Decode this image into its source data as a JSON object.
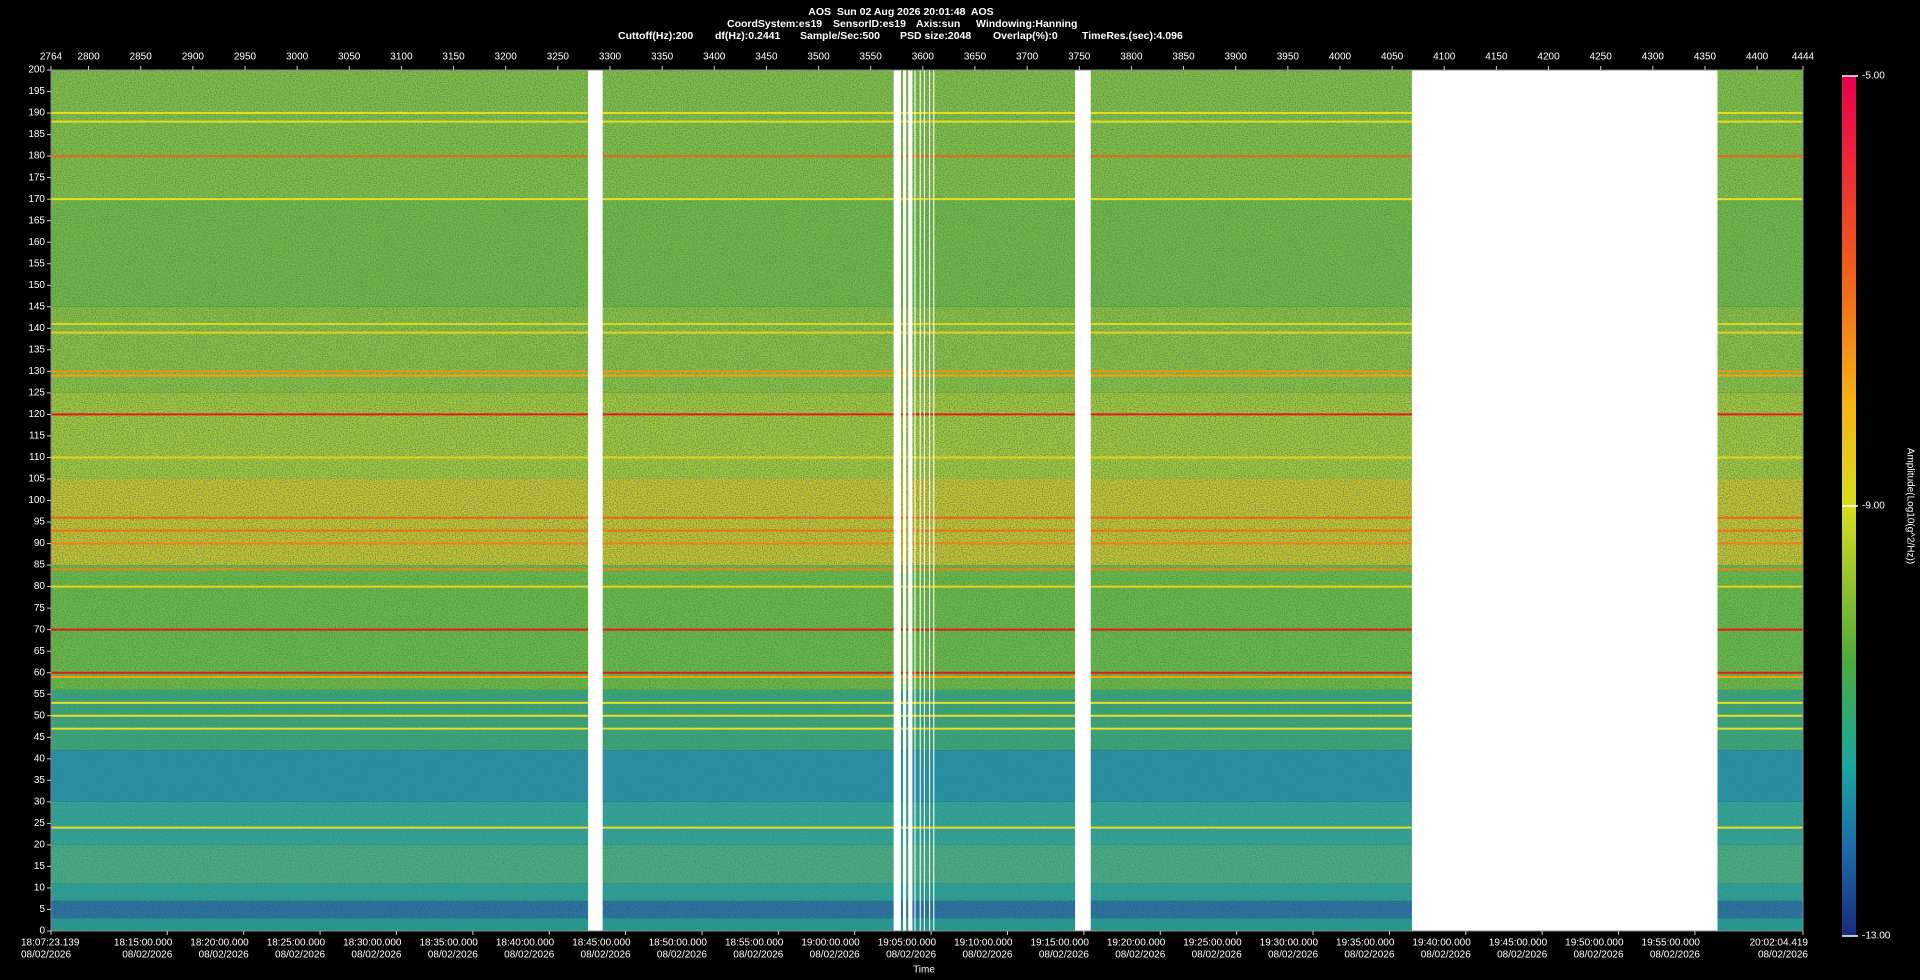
{
  "chart_data": {
    "type": "spectrogram",
    "title": "AOS  Sun 02 Aug 2026 20:01:48  AOS",
    "params_line1": [
      "CoordSystem:es19",
      "SensorID:es19",
      "Axis:sun",
      "Windowing:Hanning"
    ],
    "params_line2": [
      "Cuttoff(Hz):200",
      "df(Hz):0.2441",
      "Sample/Sec:500",
      "PSD size:2048",
      "Overlap(%):0",
      "TimeRes.(sec):4.096"
    ],
    "xlim": [
      2764,
      4444
    ],
    "xticks": [
      2764,
      2800,
      2850,
      2900,
      2950,
      3000,
      3050,
      3100,
      3150,
      3200,
      3250,
      3300,
      3350,
      3400,
      3450,
      3500,
      3550,
      3600,
      3650,
      3700,
      3750,
      3800,
      3850,
      3900,
      3950,
      4000,
      4050,
      4100,
      4150,
      4200,
      4250,
      4300,
      4350,
      4400,
      4444
    ],
    "ylim": [
      0,
      200
    ],
    "yticks": [
      0,
      5,
      10,
      15,
      20,
      25,
      30,
      35,
      40,
      45,
      50,
      55,
      60,
      65,
      70,
      75,
      80,
      85,
      90,
      95,
      100,
      105,
      110,
      115,
      120,
      125,
      130,
      135,
      140,
      145,
      150,
      155,
      160,
      165,
      170,
      175,
      180,
      185,
      190,
      195,
      200
    ],
    "xlabel": "Time",
    "time_ticks": [
      {
        "time": "18:07:23.139",
        "date": "08/02/2026"
      },
      {
        "time": "18:15:00.000",
        "date": "08/02/2026"
      },
      {
        "time": "18:20:00.000",
        "date": "08/02/2026"
      },
      {
        "time": "18:25:00.000",
        "date": "08/02/2026"
      },
      {
        "time": "18:30:00.000",
        "date": "08/02/2026"
      },
      {
        "time": "18:35:00.000",
        "date": "08/02/2026"
      },
      {
        "time": "18:40:00.000",
        "date": "08/02/2026"
      },
      {
        "time": "18:45:00.000",
        "date": "08/02/2026"
      },
      {
        "time": "18:50:00.000",
        "date": "08/02/2026"
      },
      {
        "time": "18:55:00.000",
        "date": "08/02/2026"
      },
      {
        "time": "19:00:00.000",
        "date": "08/02/2026"
      },
      {
        "time": "19:05:00.000",
        "date": "08/02/2026"
      },
      {
        "time": "19:10:00.000",
        "date": "08/02/2026"
      },
      {
        "time": "19:15:00.000",
        "date": "08/02/2026"
      },
      {
        "time": "19:20:00.000",
        "date": "08/02/2026"
      },
      {
        "time": "19:25:00.000",
        "date": "08/02/2026"
      },
      {
        "time": "19:30:00.000",
        "date": "08/02/2026"
      },
      {
        "time": "19:35:00.000",
        "date": "08/02/2026"
      },
      {
        "time": "19:40:00.000",
        "date": "08/02/2026"
      },
      {
        "time": "19:45:00.000",
        "date": "08/02/2026"
      },
      {
        "time": "19:50:00.000",
        "date": "08/02/2026"
      },
      {
        "time": "19:55:00.000",
        "date": "08/02/2026"
      },
      {
        "time": "20:02:04.419",
        "date": "08/02/2026"
      }
    ],
    "bands": [
      {
        "from": 0,
        "to": 3,
        "color": "#1f9a9c"
      },
      {
        "from": 3,
        "to": 7,
        "color": "#2366aa"
      },
      {
        "from": 7,
        "to": 11,
        "color": "#27a2a0"
      },
      {
        "from": 11,
        "to": 20,
        "color": "#48ae84"
      },
      {
        "from": 20,
        "to": 30,
        "color": "#2ea6a0"
      },
      {
        "from": 30,
        "to": 42,
        "color": "#2290b4"
      },
      {
        "from": 42,
        "to": 56,
        "color": "#3aa67c"
      },
      {
        "from": 56,
        "to": 85,
        "color": "#70bc3a"
      },
      {
        "from": 85,
        "to": 105,
        "color": "#d8c424"
      },
      {
        "from": 105,
        "to": 125,
        "color": "#b0ca30"
      },
      {
        "from": 125,
        "to": 145,
        "color": "#94c238"
      },
      {
        "from": 145,
        "to": 170,
        "color": "#78ba3a"
      },
      {
        "from": 170,
        "to": 200,
        "color": "#8ac03a"
      }
    ],
    "lines": [
      {
        "freq": 190,
        "color": "#e6dc20"
      },
      {
        "freq": 188,
        "color": "#e6dc20"
      },
      {
        "freq": 180,
        "color": "#f06018"
      },
      {
        "freq": 170,
        "color": "#e6e020"
      },
      {
        "freq": 141,
        "color": "#d8d820"
      },
      {
        "freq": 139,
        "color": "#e6d020"
      },
      {
        "freq": 130,
        "color": "#f59010"
      },
      {
        "freq": 129,
        "color": "#f5a010"
      },
      {
        "freq": 120,
        "color": "#e81818"
      },
      {
        "freq": 110,
        "color": "#e0d020"
      },
      {
        "freq": 96,
        "color": "#f06018"
      },
      {
        "freq": 93,
        "color": "#f07018"
      },
      {
        "freq": 90,
        "color": "#f08018"
      },
      {
        "freq": 84,
        "color": "#f08018"
      },
      {
        "freq": 80,
        "color": "#e6d020"
      },
      {
        "freq": 70,
        "color": "#e81818"
      },
      {
        "freq": 60,
        "color": "#e81818"
      },
      {
        "freq": 59,
        "color": "#f5a010"
      },
      {
        "freq": 53,
        "color": "#e6e020"
      },
      {
        "freq": 50,
        "color": "#e6e020"
      },
      {
        "freq": 47,
        "color": "#e6e020"
      },
      {
        "freq": 24,
        "color": "#e6e020"
      }
    ],
    "gaps": [
      [
        3279,
        3293
      ],
      [
        3572,
        3579
      ],
      [
        3581,
        3584
      ],
      [
        3586,
        3590
      ],
      [
        3592,
        3593
      ],
      [
        3597,
        3598
      ],
      [
        3601,
        3602
      ],
      [
        3606,
        3607
      ],
      [
        3610,
        3611
      ],
      [
        3746,
        3761
      ],
      [
        4069,
        4362
      ]
    ],
    "colorbar_label": "Amplitude(Log10(g^2/Hz))",
    "clim": [
      -13,
      -5
    ],
    "cticks": [
      {
        "value": -5,
        "label": "-5.00"
      },
      {
        "value": -9,
        "label": "-9.00"
      },
      {
        "value": -13,
        "label": "-13.00"
      }
    ]
  }
}
